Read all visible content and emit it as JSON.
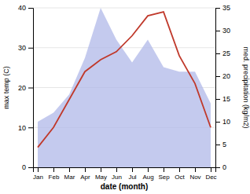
{
  "chart_data": {
    "type": "line",
    "categories": [
      "Jan",
      "Feb",
      "Mar",
      "Apr",
      "May",
      "Jun",
      "Jul",
      "Aug",
      "Sep",
      "Oct",
      "Nov",
      "Dec"
    ],
    "xlabel": "date (month)",
    "ylabel": "max temp (C)",
    "y2label": "med. precipitation (kg/m2)",
    "series": [
      {
        "type": "area",
        "color": "#b0b8e8",
        "axis": "y2",
        "values": [
          10,
          12,
          16,
          24,
          35,
          28,
          23,
          28,
          22,
          21,
          21,
          14
        ]
      },
      {
        "type": "line",
        "color": "#c0392b",
        "values": [
          5,
          10,
          17,
          24,
          27,
          29,
          33,
          38,
          39,
          28,
          21,
          10
        ]
      }
    ],
    "ylim": [
      0,
      40
    ],
    "yticks": [
      0,
      10,
      20,
      30,
      40
    ],
    "y2lim": [
      0,
      35
    ],
    "y2ticks": [
      0,
      5,
      10,
      15,
      20,
      25,
      30,
      35
    ],
    "grid": true
  }
}
